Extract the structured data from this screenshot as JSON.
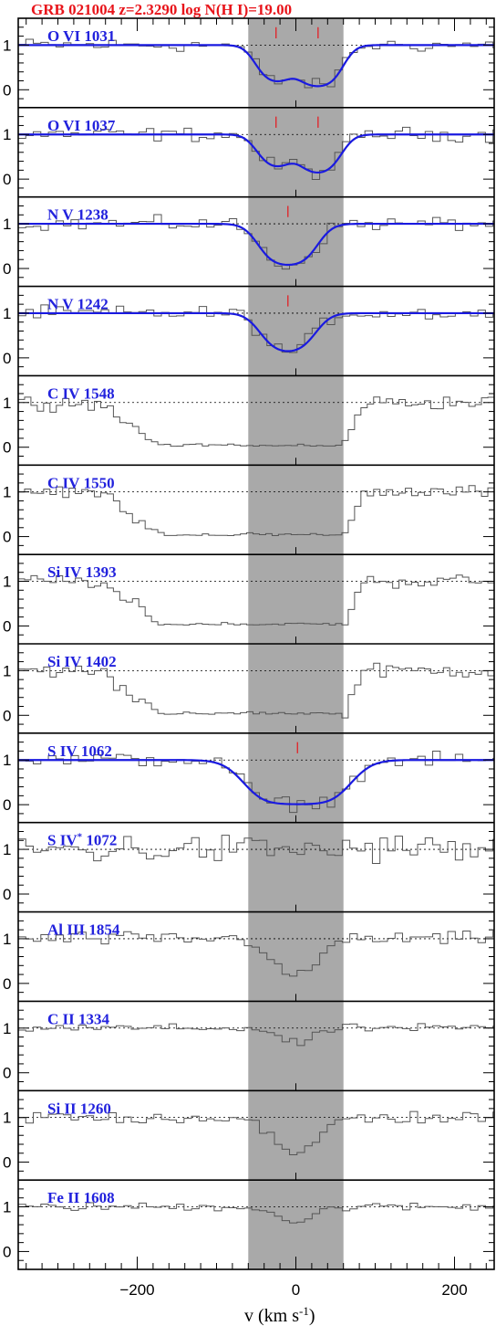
{
  "chart_data": {
    "type": "line",
    "title": "GRB 021004  z=2.3290  log N(H I)=19.00",
    "xlabel": "v (km s",
    "xlabel_exponent": "-1",
    "xlabel_close": ")",
    "xlim": [
      -350,
      250
    ],
    "ylim": [
      -0.4,
      1.6
    ],
    "x_ticks": [
      -200,
      0,
      200
    ],
    "y_ticks": [
      0,
      1
    ],
    "shaded_velocity_range": [
      -60,
      60
    ],
    "colors": {
      "title": "#e8141a",
      "labels": "#2222dd",
      "fit": "#1a1ae0",
      "component_ticks": "#e8141a",
      "shade": "#a9a9a9",
      "spectrum": "#555555"
    },
    "panels": [
      {
        "ion": "O VI",
        "wavelength": "1031",
        "spectrum_level": "absorbed",
        "fit": {
          "components": [
            {
              "v": -25,
              "tau": 1.6,
              "b": 25
            },
            {
              "v": 28,
              "tau": 2.5,
              "b": 27
            }
          ]
        }
      },
      {
        "ion": "O VI",
        "wavelength": "1037",
        "spectrum_level": "absorbed",
        "fit": {
          "components": [
            {
              "v": -25,
              "tau": 1.2,
              "b": 25
            },
            {
              "v": 28,
              "tau": 1.9,
              "b": 27
            }
          ]
        }
      },
      {
        "ion": "N V",
        "wavelength": "1238",
        "spectrum_level": "absorbed",
        "fit": {
          "components": [
            {
              "v": -10,
              "tau": 2.5,
              "b": 32
            }
          ]
        }
      },
      {
        "ion": "N V",
        "wavelength": "1242",
        "spectrum_level": "absorbed",
        "fit": {
          "components": [
            {
              "v": -10,
              "tau": 1.9,
              "b": 32
            }
          ]
        }
      },
      {
        "ion": "C IV",
        "wavelength": "1548",
        "spectrum_level": "saturated",
        "fit": null
      },
      {
        "ion": "C IV",
        "wavelength": "1550",
        "spectrum_level": "saturated",
        "fit": null
      },
      {
        "ion": "Si IV",
        "wavelength": "1393",
        "spectrum_level": "saturated",
        "fit": null
      },
      {
        "ion": "Si IV",
        "wavelength": "1402",
        "spectrum_level": "saturated",
        "fit": null
      },
      {
        "ion": "S IV",
        "wavelength": "1062",
        "spectrum_level": "absorbed",
        "fit": {
          "components": [
            {
              "v": 2,
              "tau": 4.5,
              "b": 50
            }
          ]
        }
      },
      {
        "ion": "S IV",
        "star": "*",
        "wavelength": "1072",
        "spectrum_level": "noisy",
        "fit": null
      },
      {
        "ion": "Al III",
        "wavelength": "1854",
        "spectrum_level": "absorbed",
        "fit": null
      },
      {
        "ion": "C II",
        "wavelength": "1334",
        "spectrum_level": "weak",
        "fit": null
      },
      {
        "ion": "Si II",
        "wavelength": "1260",
        "spectrum_level": "absorbed",
        "fit": null
      },
      {
        "ion": "Fe II",
        "wavelength": "1608",
        "spectrum_level": "weak",
        "fit": null
      }
    ]
  }
}
